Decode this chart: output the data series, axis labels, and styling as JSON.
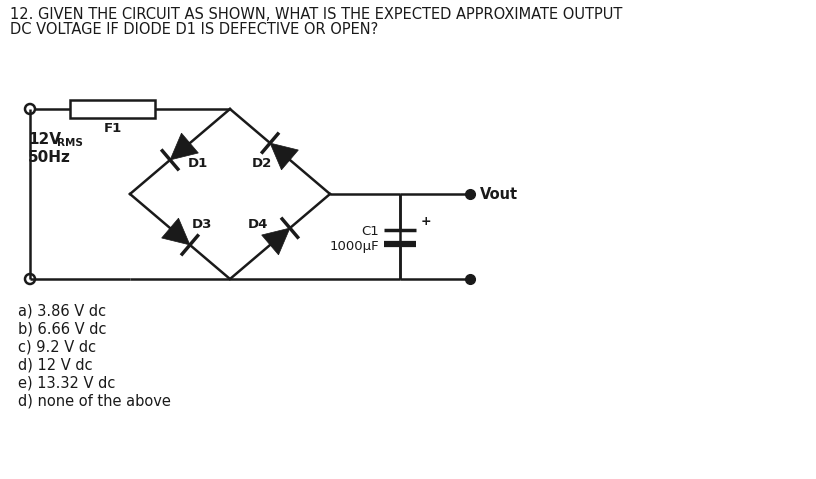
{
  "title_line1": "12. GIVEN THE CIRCUIT AS SHOWN, WHAT IS THE EXPECTED APPROXIMATE OUTPUT",
  "title_line2": "DC VOLTAGE IF DIODE D1 IS DEFECTIVE OR OPEN?",
  "source_label1": "12V",
  "source_label1_sub": "RMS",
  "source_label2": "50Hz",
  "fuse_label": "F1",
  "d1_label": "D1",
  "d2_label": "D2",
  "d3_label": "D3",
  "d4_label": "D4",
  "cap_label1": "C1",
  "cap_label2": "1000μF",
  "vout_label": "Vout",
  "choices": [
    "a) 3.86 V dc",
    "b) 6.66 V dc",
    "c) 9.2 V dc",
    "d) 12 V dc",
    "e) 13.32 V dc",
    "d) none of the above"
  ],
  "bg_color": "#ffffff",
  "line_color": "#1a1a1a",
  "title_fontsize": 10.5,
  "choice_fontsize": 10.5
}
